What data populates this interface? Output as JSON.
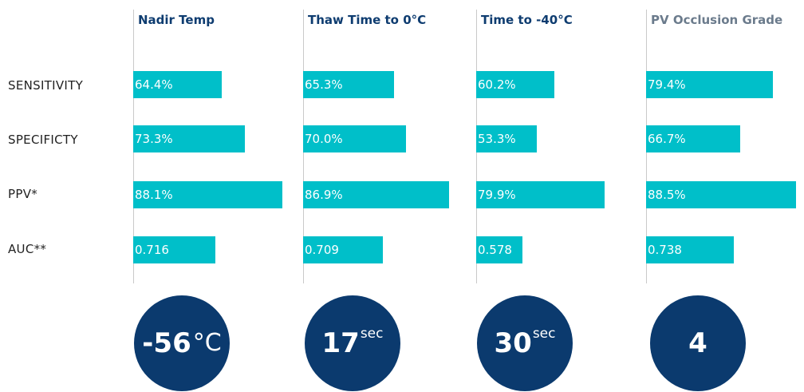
{
  "colors": {
    "bar": "#00bfc9",
    "circle": "#0b3a6e",
    "title": "#0e3c70",
    "title_muted": "#6b7b8c"
  },
  "chart_data": {
    "type": "bar",
    "orientation": "horizontal",
    "categories": [
      "SENSITIVITY",
      "SPECIFICTY",
      "PPV*",
      "AUC**"
    ],
    "series": [
      {
        "name": "Nadir Temp",
        "values": [
          64.4,
          73.3,
          88.1,
          0.716
        ],
        "labels": [
          "64.4%",
          "73.3%",
          "88.1%",
          "0.716"
        ]
      },
      {
        "name": "Thaw Time to 0°C",
        "values": [
          65.3,
          70.0,
          86.9,
          0.709
        ],
        "labels": [
          "65.3%",
          "70.0%",
          "86.9%",
          "0.709"
        ]
      },
      {
        "name": "Time to -40°C",
        "values": [
          60.2,
          53.3,
          79.9,
          0.578
        ],
        "labels": [
          "60.2%",
          "53.3%",
          "79.9%",
          "0.578"
        ]
      },
      {
        "name": "PV Occlusion Grade",
        "values": [
          79.4,
          66.7,
          88.5,
          0.738
        ],
        "labels": [
          "79.4%",
          "66.7%",
          "88.5%",
          "0.738"
        ]
      }
    ],
    "grid": false,
    "legend": "none"
  },
  "cutoffs": [
    {
      "value": "-56",
      "unit": "°C",
      "unit_style": "deg"
    },
    {
      "value": "17",
      "unit": "sec",
      "unit_style": "sup"
    },
    {
      "value": "30",
      "unit": "sec",
      "unit_style": "sup"
    },
    {
      "value": "4",
      "unit": "",
      "unit_style": "none"
    }
  ]
}
